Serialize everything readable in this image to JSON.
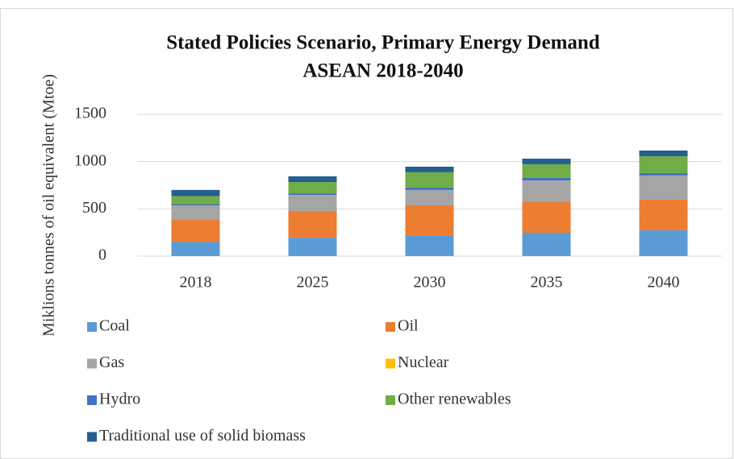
{
  "chart_data": {
    "type": "stacked_bar",
    "title": "Stated Policies Scenario, Primary Energy Demand",
    "subtitle": "ASEAN 2018-2040",
    "y_label": "Miklions tonnes of oil equivalent (Mtoe)",
    "categories": [
      "2018",
      "2025",
      "2030",
      "2035",
      "2040"
    ],
    "series": [
      {
        "name": "Coal",
        "color": "#5b9bd5",
        "values": [
          150,
          195,
          220,
          247,
          273
        ]
      },
      {
        "name": "Oil",
        "color": "#ed7d31",
        "values": [
          240,
          282,
          317,
          324,
          324
        ]
      },
      {
        "name": "Gas",
        "color": "#a5a5a5",
        "values": [
          145,
          170,
          163,
          229,
          256
        ]
      },
      {
        "name": "Nuclear",
        "color": "#ffc000",
        "values": [
          0,
          0,
          0,
          0,
          0
        ]
      },
      {
        "name": "Hydro",
        "color": "#4472c4",
        "values": [
          15,
          17,
          25,
          27,
          25
        ]
      },
      {
        "name": "Other renewables",
        "color": "#70ad47",
        "values": [
          85,
          120,
          162,
          145,
          179
        ]
      },
      {
        "name": "Traditional use of solid biomass",
        "color": "#255e91",
        "values": [
          65,
          60,
          59,
          59,
          60
        ]
      }
    ],
    "ylim": [
      0,
      1500
    ],
    "yticks": [
      0,
      500,
      1000,
      1500
    ],
    "grid": true
  }
}
